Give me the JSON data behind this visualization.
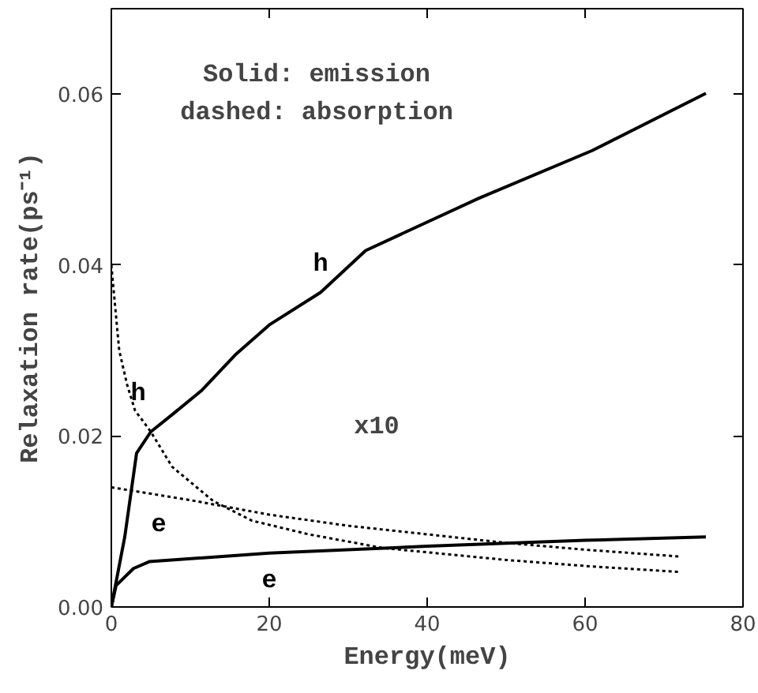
{
  "chart_data": {
    "type": "line",
    "xlabel": "Energy(meV)",
    "ylabel": "Relaxation rate(ps⁻¹)",
    "xlim": [
      0,
      80
    ],
    "ylim": [
      0,
      0.07
    ],
    "xticks": [
      0,
      20,
      40,
      60,
      80
    ],
    "yticks": [
      {
        "value": 0,
        "label": "0.00"
      },
      {
        "value": 0.02,
        "label": "0.02"
      },
      {
        "value": 0.04,
        "label": "0.04"
      },
      {
        "value": 0.06,
        "label": "0.06"
      }
    ],
    "grid": false,
    "marker": "none",
    "series": [
      {
        "name": "h",
        "color": "#000000",
        "line_style": "solid",
        "x": [
          0,
          1.7,
          3.2,
          5,
          7.7,
          11.4,
          15.7,
          20,
          26.5,
          32.2,
          46.5,
          60.9,
          75.3
        ],
        "values": [
          0,
          0.0082,
          0.018,
          0.0205,
          0.0225,
          0.0253,
          0.0295,
          0.033,
          0.0368,
          0.0417,
          0.0478,
          0.0534,
          0.0601
        ]
      },
      {
        "name": "h",
        "color": "#000000",
        "line_style": "dotted",
        "x": [
          0,
          1,
          2,
          3,
          5,
          7.7,
          12.9,
          17.8,
          25,
          34.4,
          50,
          60,
          72
        ],
        "values": [
          0.04,
          0.03,
          0.026,
          0.023,
          0.0205,
          0.0164,
          0.0124,
          0.0101,
          0.0085,
          0.0069,
          0.0055,
          0.0048,
          0.0041
        ]
      },
      {
        "name": "e",
        "color": "#000000",
        "line_style": "dotted",
        "x": [
          0,
          10,
          20,
          30,
          40,
          50,
          60,
          72
        ],
        "values": [
          0.014,
          0.0125,
          0.0108,
          0.0095,
          0.0085,
          0.0075,
          0.0067,
          0.0059
        ]
      },
      {
        "name": "e",
        "color": "#000000",
        "line_style": "solid",
        "x": [
          0,
          0.6,
          2.8,
          4.8,
          20,
          40,
          60,
          75.3
        ],
        "values": [
          0,
          0.0025,
          0.0045,
          0.0053,
          0.0063,
          0.0071,
          0.0078,
          0.0082
        ]
      }
    ],
    "annotations": [
      "Solid: emission",
      "dashed: absorption",
      "x10"
    ]
  }
}
